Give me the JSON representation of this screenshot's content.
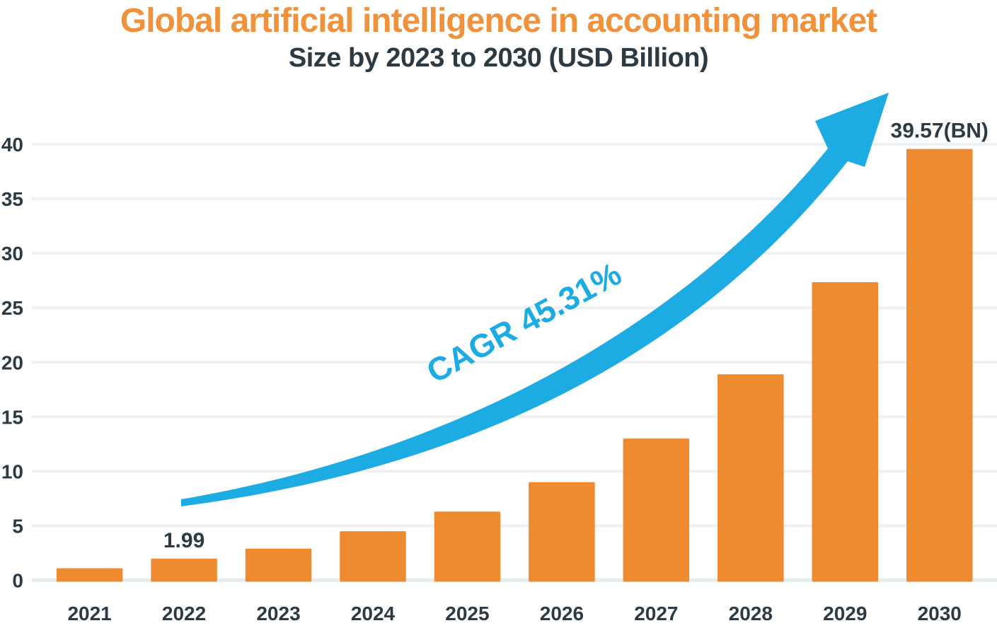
{
  "header": {
    "title": "Global artificial intelligence in accounting market",
    "subtitle": "Size by 2023 to 2030 (USD Billion)"
  },
  "chart_data": {
    "type": "bar",
    "title": "Global artificial intelligence in accounting market",
    "subtitle": "Size by 2023 to 2030 (USD Billion)",
    "unit": "USD Billion",
    "categories": [
      "2021",
      "2022",
      "2023",
      "2024",
      "2025",
      "2026",
      "2027",
      "2028",
      "2029",
      "2030"
    ],
    "values": [
      1.1,
      1.99,
      2.9,
      4.5,
      6.3,
      9.0,
      13.0,
      18.9,
      27.35,
      39.57
    ],
    "bar_labels": [
      {
        "category": "2022",
        "label": "1.99"
      },
      {
        "category": "2030",
        "label": "39.57(BN)"
      }
    ],
    "annotation": "CAGR 45.31%",
    "xlabel": "",
    "ylabel": "",
    "ylim": [
      0,
      40
    ],
    "yticks": [
      0,
      5,
      10,
      15,
      20,
      25,
      30,
      35,
      40
    ],
    "grid": "horizontal",
    "legend_position": "none"
  },
  "colors": {
    "accent_orange": "#F0923B",
    "bar_orange": "#EE8B31",
    "arrow_blue": "#1CACE3",
    "text_dark": "#2E3A43",
    "gridline": "#EDF1F4",
    "baseline": "#E7ECEF",
    "background": "#FFFFFF"
  }
}
